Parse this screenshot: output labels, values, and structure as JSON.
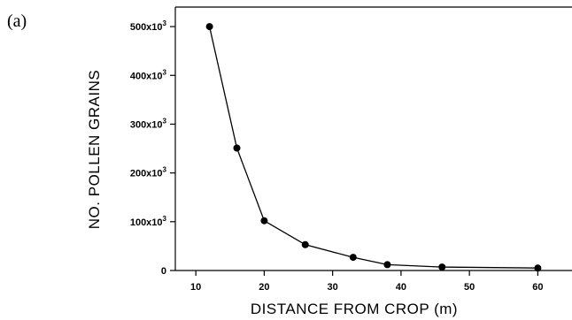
{
  "panel_label": "(a)",
  "chart_data": {
    "type": "line",
    "xlabel": "DISTANCE FROM CROP (m)",
    "ylabel": "NO. POLLEN  GRAINS",
    "xlim": [
      7,
      65
    ],
    "ylim": [
      0,
      540000
    ],
    "x_ticks": [
      10,
      20,
      30,
      40,
      50,
      60
    ],
    "y_ticks": [
      {
        "value": 0,
        "base": "0",
        "exp": ""
      },
      {
        "value": 100000,
        "base": "100x10",
        "exp": "3"
      },
      {
        "value": 200000,
        "base": "200x10",
        "exp": "3"
      },
      {
        "value": 300000,
        "base": "300x10",
        "exp": "3"
      },
      {
        "value": 400000,
        "base": "400x10",
        "exp": "3"
      },
      {
        "value": 500000,
        "base": "500x10",
        "exp": "3"
      }
    ],
    "x": [
      12,
      16,
      20,
      26,
      33,
      38,
      46,
      60
    ],
    "y": [
      500000,
      251000,
      102000,
      53000,
      27000,
      12000,
      7000,
      5000
    ],
    "grid": false,
    "marker": "filled-circle",
    "line_color": "#000000"
  }
}
